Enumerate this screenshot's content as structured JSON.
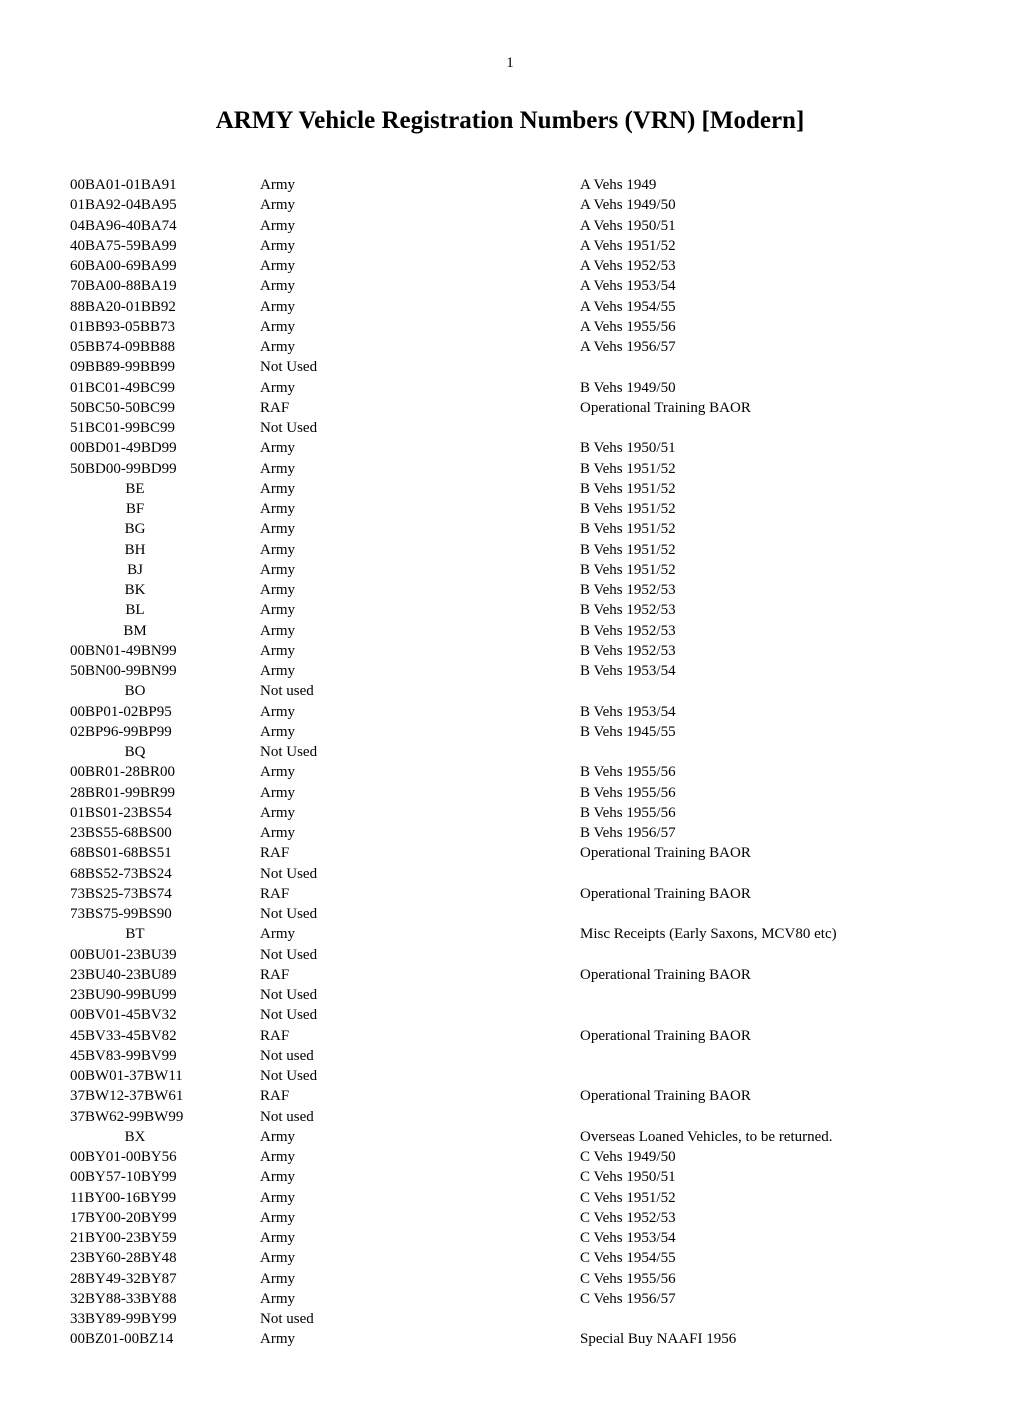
{
  "page_number": "1",
  "title": "ARMY Vehicle Registration Numbers (VRN) [Modern]",
  "rows": [
    {
      "vrn": "00BA01-01BA91",
      "service": "Army",
      "desc": "A Vehs 1949"
    },
    {
      "vrn": "01BA92-04BA95",
      "service": "Army",
      "desc": "A Vehs 1949/50"
    },
    {
      "vrn": "04BA96-40BA74",
      "service": "Army",
      "desc": "A Vehs 1950/51"
    },
    {
      "vrn": "40BA75-59BA99",
      "service": "Army",
      "desc": "A Vehs 1951/52"
    },
    {
      "vrn": "60BA00-69BA99",
      "service": "Army",
      "desc": "A Vehs 1952/53"
    },
    {
      "vrn": "70BA00-88BA19",
      "service": "Army",
      "desc": "A Vehs 1953/54"
    },
    {
      "vrn": "88BA20-01BB92",
      "service": "Army",
      "desc": "A Vehs 1954/55"
    },
    {
      "vrn": "01BB93-05BB73",
      "service": "Army",
      "desc": "A Vehs 1955/56"
    },
    {
      "vrn": "05BB74-09BB88",
      "service": "Army",
      "desc": "A Vehs 1956/57"
    },
    {
      "vrn": "09BB89-99BB99",
      "service": "Not Used",
      "desc": ""
    },
    {
      "vrn": "01BC01-49BC99",
      "service": "Army",
      "desc": "B Vehs 1949/50"
    },
    {
      "vrn": "50BC50-50BC99",
      "service": "RAF",
      "desc": "Operational Training BAOR"
    },
    {
      "vrn": "51BC01-99BC99",
      "service": "Not Used",
      "desc": ""
    },
    {
      "vrn": "00BD01-49BD99",
      "service": "Army",
      "desc": "B Vehs 1950/51"
    },
    {
      "vrn": "50BD00-99BD99",
      "service": "Army",
      "desc": "B Vehs 1951/52"
    },
    {
      "vrn": "BE",
      "service": "Army",
      "desc": "B Vehs 1951/52",
      "centered": true
    },
    {
      "vrn": "BF",
      "service": "Army",
      "desc": "B Vehs 1951/52",
      "centered": true
    },
    {
      "vrn": "BG",
      "service": "Army",
      "desc": "B Vehs 1951/52",
      "centered": true
    },
    {
      "vrn": "BH",
      "service": "Army",
      "desc": "B Vehs 1951/52",
      "centered": true
    },
    {
      "vrn": "BJ",
      "service": "Army",
      "desc": "B Vehs 1951/52",
      "centered": true
    },
    {
      "vrn": "BK",
      "service": "Army",
      "desc": "B Vehs 1952/53",
      "centered": true
    },
    {
      "vrn": "BL",
      "service": "Army",
      "desc": "B Vehs 1952/53",
      "centered": true
    },
    {
      "vrn": "BM",
      "service": "Army",
      "desc": "B Vehs 1952/53",
      "centered": true
    },
    {
      "vrn": "00BN01-49BN99",
      "service": "Army",
      "desc": "B Vehs 1952/53"
    },
    {
      "vrn": "50BN00-99BN99",
      "service": "Army",
      "desc": "B Vehs 1953/54"
    },
    {
      "vrn": "BO",
      "service": "Not used",
      "desc": "",
      "centered": true
    },
    {
      "vrn": "00BP01-02BP95",
      "service": "Army",
      "desc": "B Vehs 1953/54"
    },
    {
      "vrn": "02BP96-99BP99",
      "service": "Army",
      "desc": "B Vehs 1945/55"
    },
    {
      "vrn": "BQ",
      "service": "Not Used",
      "desc": "",
      "centered": true
    },
    {
      "vrn": "00BR01-28BR00",
      "service": "Army",
      "desc": "B Vehs 1955/56"
    },
    {
      "vrn": "28BR01-99BR99",
      "service": "Army",
      "desc": "B Vehs 1955/56"
    },
    {
      "vrn": "01BS01-23BS54",
      "service": "Army",
      "desc": "B Vehs 1955/56"
    },
    {
      "vrn": "23BS55-68BS00",
      "service": "Army",
      "desc": "B Vehs 1956/57"
    },
    {
      "vrn": "68BS01-68BS51",
      "service": "RAF",
      "desc": "Operational Training BAOR"
    },
    {
      "vrn": "68BS52-73BS24",
      "service": "Not Used",
      "desc": ""
    },
    {
      "vrn": "73BS25-73BS74",
      "service": "RAF",
      "desc": "Operational Training BAOR"
    },
    {
      "vrn": "73BS75-99BS90",
      "service": "Not Used",
      "desc": ""
    },
    {
      "vrn": "BT",
      "service": "Army",
      "desc": "Misc Receipts (Early Saxons, MCV80 etc)",
      "centered": true
    },
    {
      "vrn": "00BU01-23BU39",
      "service": "Not Used",
      "desc": ""
    },
    {
      "vrn": "23BU40-23BU89",
      "service": "RAF",
      "desc": "Operational Training BAOR"
    },
    {
      "vrn": "23BU90-99BU99",
      "service": "Not Used",
      "desc": ""
    },
    {
      "vrn": "00BV01-45BV32",
      "service": "Not Used",
      "desc": ""
    },
    {
      "vrn": "45BV33-45BV82",
      "service": "RAF",
      "desc": "Operational Training BAOR"
    },
    {
      "vrn": "45BV83-99BV99",
      "service": "Not used",
      "desc": ""
    },
    {
      "vrn": "00BW01-37BW11",
      "service": "Not Used",
      "desc": ""
    },
    {
      "vrn": "37BW12-37BW61",
      "service": "RAF",
      "desc": "Operational Training BAOR"
    },
    {
      "vrn": "37BW62-99BW99",
      "service": "Not used",
      "desc": ""
    },
    {
      "vrn": "BX",
      "service": "Army",
      "desc": "Overseas Loaned Vehicles, to be returned.",
      "centered": true
    },
    {
      "vrn": "00BY01-00BY56",
      "service": "Army",
      "desc": "C Vehs 1949/50"
    },
    {
      "vrn": "00BY57-10BY99",
      "service": "Army",
      "desc": "C Vehs 1950/51"
    },
    {
      "vrn": "11BY00-16BY99",
      "service": "Army",
      "desc": "C Vehs 1951/52"
    },
    {
      "vrn": "17BY00-20BY99",
      "service": "Army",
      "desc": "C Vehs 1952/53"
    },
    {
      "vrn": "21BY00-23BY59",
      "service": "Army",
      "desc": "C Vehs 1953/54"
    },
    {
      "vrn": "23BY60-28BY48",
      "service": "Army",
      "desc": "C Vehs 1954/55"
    },
    {
      "vrn": "28BY49-32BY87",
      "service": "Army",
      "desc": "C Vehs 1955/56"
    },
    {
      "vrn": "32BY88-33BY88",
      "service": "Army",
      "desc": "C Vehs 1956/57"
    },
    {
      "vrn": "33BY89-99BY99",
      "service": "Not used",
      "desc": ""
    },
    {
      "vrn": "00BZ01-00BZ14",
      "service": "Army",
      "desc": "Special Buy NAAFI 1956"
    }
  ]
}
